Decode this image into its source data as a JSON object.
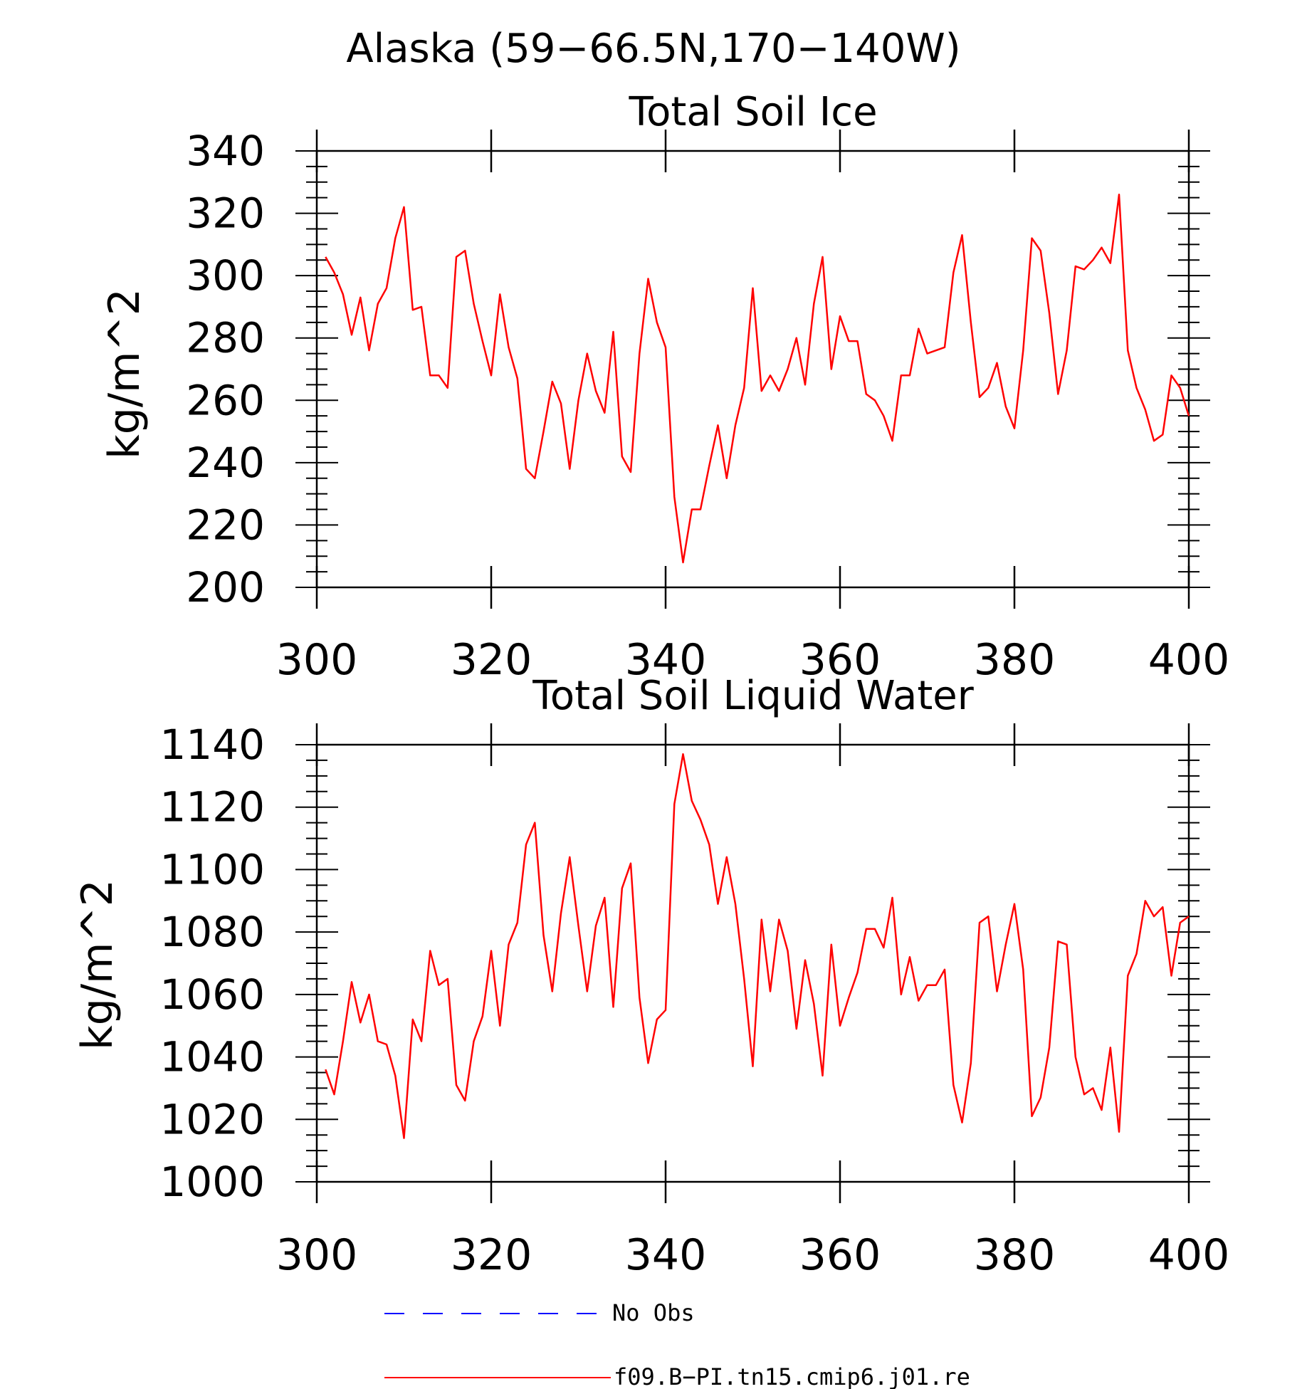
{
  "figure": {
    "main_title": "Alaska (59−66.5N,170−140W)",
    "series_color": "#ff0000",
    "legend_obs_color": "#0000ff",
    "legend": {
      "entries": [
        {
          "label": "No Obs",
          "style": "dashed",
          "color": "#0000ff"
        },
        {
          "label": "f09.B−PI.tn15.cmip6.j01.re",
          "style": "solid",
          "color": "#ff0000"
        }
      ],
      "placement": "bottom"
    }
  },
  "chart_data": [
    {
      "type": "line",
      "title": "Total Soil Ice",
      "xlabel": "",
      "ylabel": "kg/m^2",
      "xlim": [
        300,
        400
      ],
      "ylim": [
        200,
        340
      ],
      "xticks": [
        "300",
        "320",
        "340",
        "360",
        "380",
        "400"
      ],
      "yticks": [
        "200",
        "220",
        "240",
        "260",
        "280",
        "300",
        "320",
        "340"
      ],
      "grid": false,
      "x": [
        301,
        302,
        303,
        304,
        305,
        306,
        307,
        308,
        309,
        310,
        311,
        312,
        313,
        314,
        315,
        316,
        317,
        318,
        319,
        320,
        321,
        322,
        323,
        324,
        325,
        326,
        327,
        328,
        329,
        330,
        331,
        332,
        333,
        334,
        335,
        336,
        337,
        338,
        339,
        340,
        341,
        342,
        343,
        344,
        345,
        346,
        347,
        348,
        349,
        350,
        351,
        352,
        353,
        354,
        355,
        356,
        357,
        358,
        359,
        360,
        361,
        362,
        363,
        364,
        365,
        366,
        367,
        368,
        369,
        370,
        371,
        372,
        373,
        374,
        375,
        376,
        377,
        378,
        379,
        380,
        381,
        382,
        383,
        384,
        385,
        386,
        387,
        388,
        389,
        390,
        391,
        392,
        393,
        394,
        395,
        396,
        397,
        398,
        399,
        400
      ],
      "series": [
        {
          "name": "f09.B−PI.tn15.cmip6.j01.re",
          "values": [
            306,
            301,
            294,
            281,
            293,
            276,
            291,
            296,
            312,
            322,
            289,
            290,
            268,
            268,
            264,
            306,
            308,
            291,
            279,
            268,
            294,
            277,
            267,
            238,
            235,
            250,
            266,
            259,
            238,
            260,
            275,
            263,
            256,
            282,
            242,
            237,
            275,
            299,
            285,
            277,
            229,
            208,
            225,
            225,
            239,
            252,
            235,
            252,
            264,
            296,
            263,
            268,
            263,
            270,
            280,
            265,
            291,
            306,
            270,
            287,
            279,
            279,
            262,
            260,
            255,
            247,
            268,
            268,
            283,
            275,
            276,
            277,
            301,
            313,
            285,
            261,
            264,
            272,
            258,
            251,
            276,
            312,
            308,
            288,
            262,
            276,
            303,
            302,
            305,
            309,
            304,
            326,
            276,
            264,
            257,
            247,
            249,
            268,
            264,
            255
          ]
        }
      ]
    },
    {
      "type": "line",
      "title": "Total Soil Liquid Water",
      "xlabel": "",
      "ylabel": "kg/m^2",
      "xlim": [
        300,
        400
      ],
      "ylim": [
        1000,
        1140
      ],
      "xticks": [
        "300",
        "320",
        "340",
        "360",
        "380",
        "400"
      ],
      "yticks": [
        "1000",
        "1020",
        "1040",
        "1060",
        "1080",
        "1100",
        "1120",
        "1140"
      ],
      "grid": false,
      "x": [
        301,
        302,
        303,
        304,
        305,
        306,
        307,
        308,
        309,
        310,
        311,
        312,
        313,
        314,
        315,
        316,
        317,
        318,
        319,
        320,
        321,
        322,
        323,
        324,
        325,
        326,
        327,
        328,
        329,
        330,
        331,
        332,
        333,
        334,
        335,
        336,
        337,
        338,
        339,
        340,
        341,
        342,
        343,
        344,
        345,
        346,
        347,
        348,
        349,
        350,
        351,
        352,
        353,
        354,
        355,
        356,
        357,
        358,
        359,
        360,
        361,
        362,
        363,
        364,
        365,
        366,
        367,
        368,
        369,
        370,
        371,
        372,
        373,
        374,
        375,
        376,
        377,
        378,
        379,
        380,
        381,
        382,
        383,
        384,
        385,
        386,
        387,
        388,
        389,
        390,
        391,
        392,
        393,
        394,
        395,
        396,
        397,
        398,
        399,
        400
      ],
      "series": [
        {
          "name": "f09.B−PI.tn15.cmip6.j01.re",
          "values": [
            1036,
            1028,
            1045,
            1064,
            1051,
            1060,
            1045,
            1044,
            1034,
            1014,
            1052,
            1045,
            1074,
            1063,
            1065,
            1031,
            1026,
            1045,
            1053,
            1074,
            1050,
            1076,
            1083,
            1108,
            1115,
            1079,
            1061,
            1086,
            1104,
            1082,
            1061,
            1082,
            1091,
            1056,
            1094,
            1102,
            1059,
            1038,
            1052,
            1055,
            1121,
            1137,
            1122,
            1116,
            1108,
            1089,
            1104,
            1089,
            1065,
            1037,
            1084,
            1061,
            1084,
            1074,
            1049,
            1071,
            1057,
            1034,
            1076,
            1050,
            1059,
            1067,
            1081,
            1081,
            1075,
            1091,
            1060,
            1072,
            1058,
            1063,
            1063,
            1068,
            1031,
            1019,
            1038,
            1083,
            1085,
            1061,
            1076,
            1089,
            1068,
            1021,
            1027,
            1043,
            1077,
            1076,
            1040,
            1028,
            1030,
            1023,
            1043,
            1016,
            1066,
            1073,
            1090,
            1085,
            1088,
            1066,
            1083,
            1085
          ]
        }
      ]
    }
  ]
}
